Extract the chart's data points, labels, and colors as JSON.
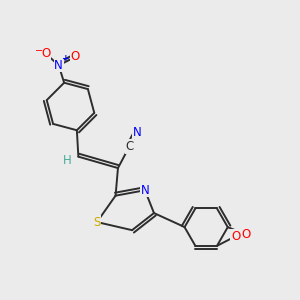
{
  "bg_color": "#ebebeb",
  "bond_color": "#2d2d2d",
  "atom_colors": {
    "N": "#0000ff",
    "O": "#ff0000",
    "S": "#ccaa00",
    "C": "#2d2d2d",
    "H": "#4aaa99"
  },
  "font_size": 8.5,
  "line_width": 1.4
}
